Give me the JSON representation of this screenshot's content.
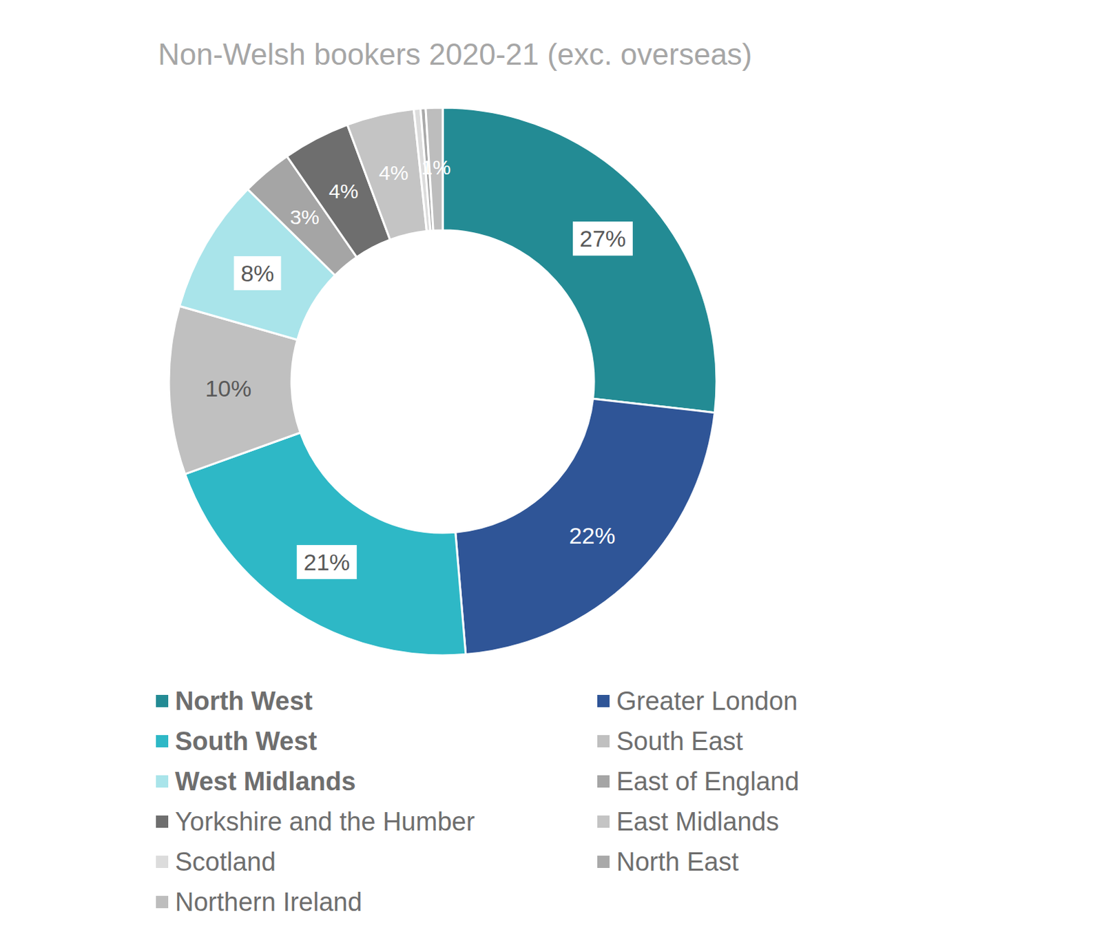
{
  "chart_data": {
    "type": "pie",
    "title": "Non-Welsh bookers 2020-21 (exc. overseas)",
    "categories": [
      "North West",
      "Greater London",
      "South West",
      "South East",
      "West Midlands",
      "East of England",
      "Yorkshire and the Humber",
      "East Midlands",
      "Scotland",
      "North East",
      "Northern Ireland"
    ],
    "values": [
      27,
      22,
      21,
      10,
      8,
      3,
      4,
      4,
      0.4,
      0.3,
      1
    ],
    "value_labels": [
      "27%",
      "22%",
      "21%",
      "10%",
      "8%",
      "3%",
      "4%",
      "4%",
      null,
      null,
      "1%"
    ],
    "colors": [
      "#238b94",
      "#2f5597",
      "#2eb8c6",
      "#c0c0c0",
      "#a9e4ea",
      "#a5a5a5",
      "#6e6e6e",
      "#c4c4c4",
      "#dcdcdc",
      "#a9a9a9",
      "#bdbdbd"
    ],
    "data_labels": true,
    "legend": "bottom"
  }
}
